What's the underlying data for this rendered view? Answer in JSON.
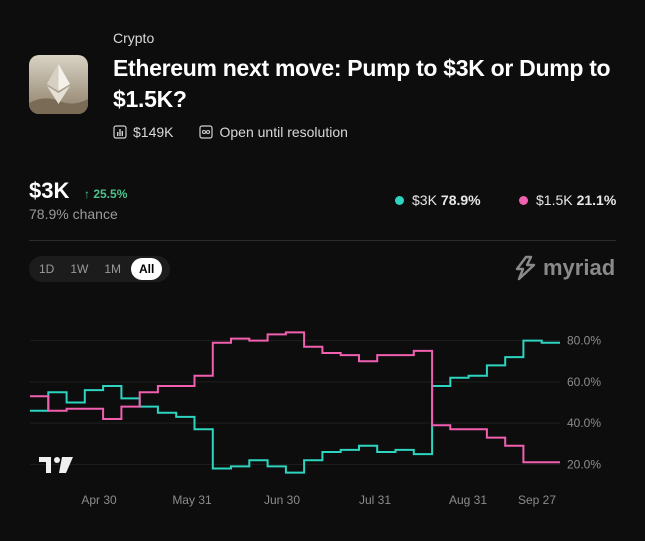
{
  "market": {
    "category": "Crypto",
    "title": "Ethereum next move: Pump to $3K or Dump to $1.5K?",
    "volume": "$149K",
    "status": "Open until resolution"
  },
  "lead": {
    "price": "$3K",
    "change": "↑ 25.5%",
    "chance": "78.9% chance"
  },
  "legend": [
    {
      "label": "$3K",
      "value": "78.9%",
      "color": "#2dd4bf"
    },
    {
      "label": "$1.5K",
      "value": "21.1%",
      "color": "#f15fb0"
    }
  ],
  "ranges": [
    "1D",
    "1W",
    "1M",
    "All"
  ],
  "active_range": "All",
  "brand": "myriad",
  "colors": {
    "up": "#4cc38a",
    "series_a": "#2dd4bf",
    "series_b": "#f15fb0"
  },
  "chart_data": {
    "type": "line",
    "x_ticks": [
      "Apr 30",
      "May 31",
      "Jun 30",
      "Jul 31",
      "Aug 31",
      "Sep 27"
    ],
    "y_ticks": [
      "20.0%",
      "40.0%",
      "60.0%",
      "80.0%"
    ],
    "ylim": [
      10,
      90
    ],
    "x": [
      "Apr 5",
      "Apr 12",
      "Apr 19",
      "Apr 26",
      "May 3",
      "May 10",
      "May 17",
      "May 24",
      "May 28",
      "Jun 1",
      "Jun 8",
      "Jun 15",
      "Jun 22",
      "Jun 29",
      "Jul 6",
      "Jul 13",
      "Jul 20",
      "Jul 27",
      "Aug 3",
      "Aug 10",
      "Aug 17",
      "Aug 20",
      "Aug 23",
      "Aug 28",
      "Sep 4",
      "Sep 11",
      "Sep 18",
      "Sep 22",
      "Sep 27",
      "Oct 1"
    ],
    "series": [
      {
        "name": "$3K",
        "values": [
          46,
          55,
          50,
          56,
          58,
          52,
          48,
          45,
          43,
          37,
          18,
          19,
          22,
          19,
          16,
          22,
          26,
          27,
          29,
          26,
          27,
          25,
          58,
          62,
          63,
          68,
          72,
          80,
          79,
          79
        ]
      },
      {
        "name": "$1.5K",
        "values": [
          53,
          46,
          47,
          47,
          42,
          48,
          55,
          58,
          58,
          63,
          79,
          81,
          80,
          83,
          84,
          77,
          74,
          73,
          70,
          73,
          73,
          75,
          39,
          37,
          37,
          33,
          29,
          21,
          21,
          21
        ]
      }
    ]
  }
}
